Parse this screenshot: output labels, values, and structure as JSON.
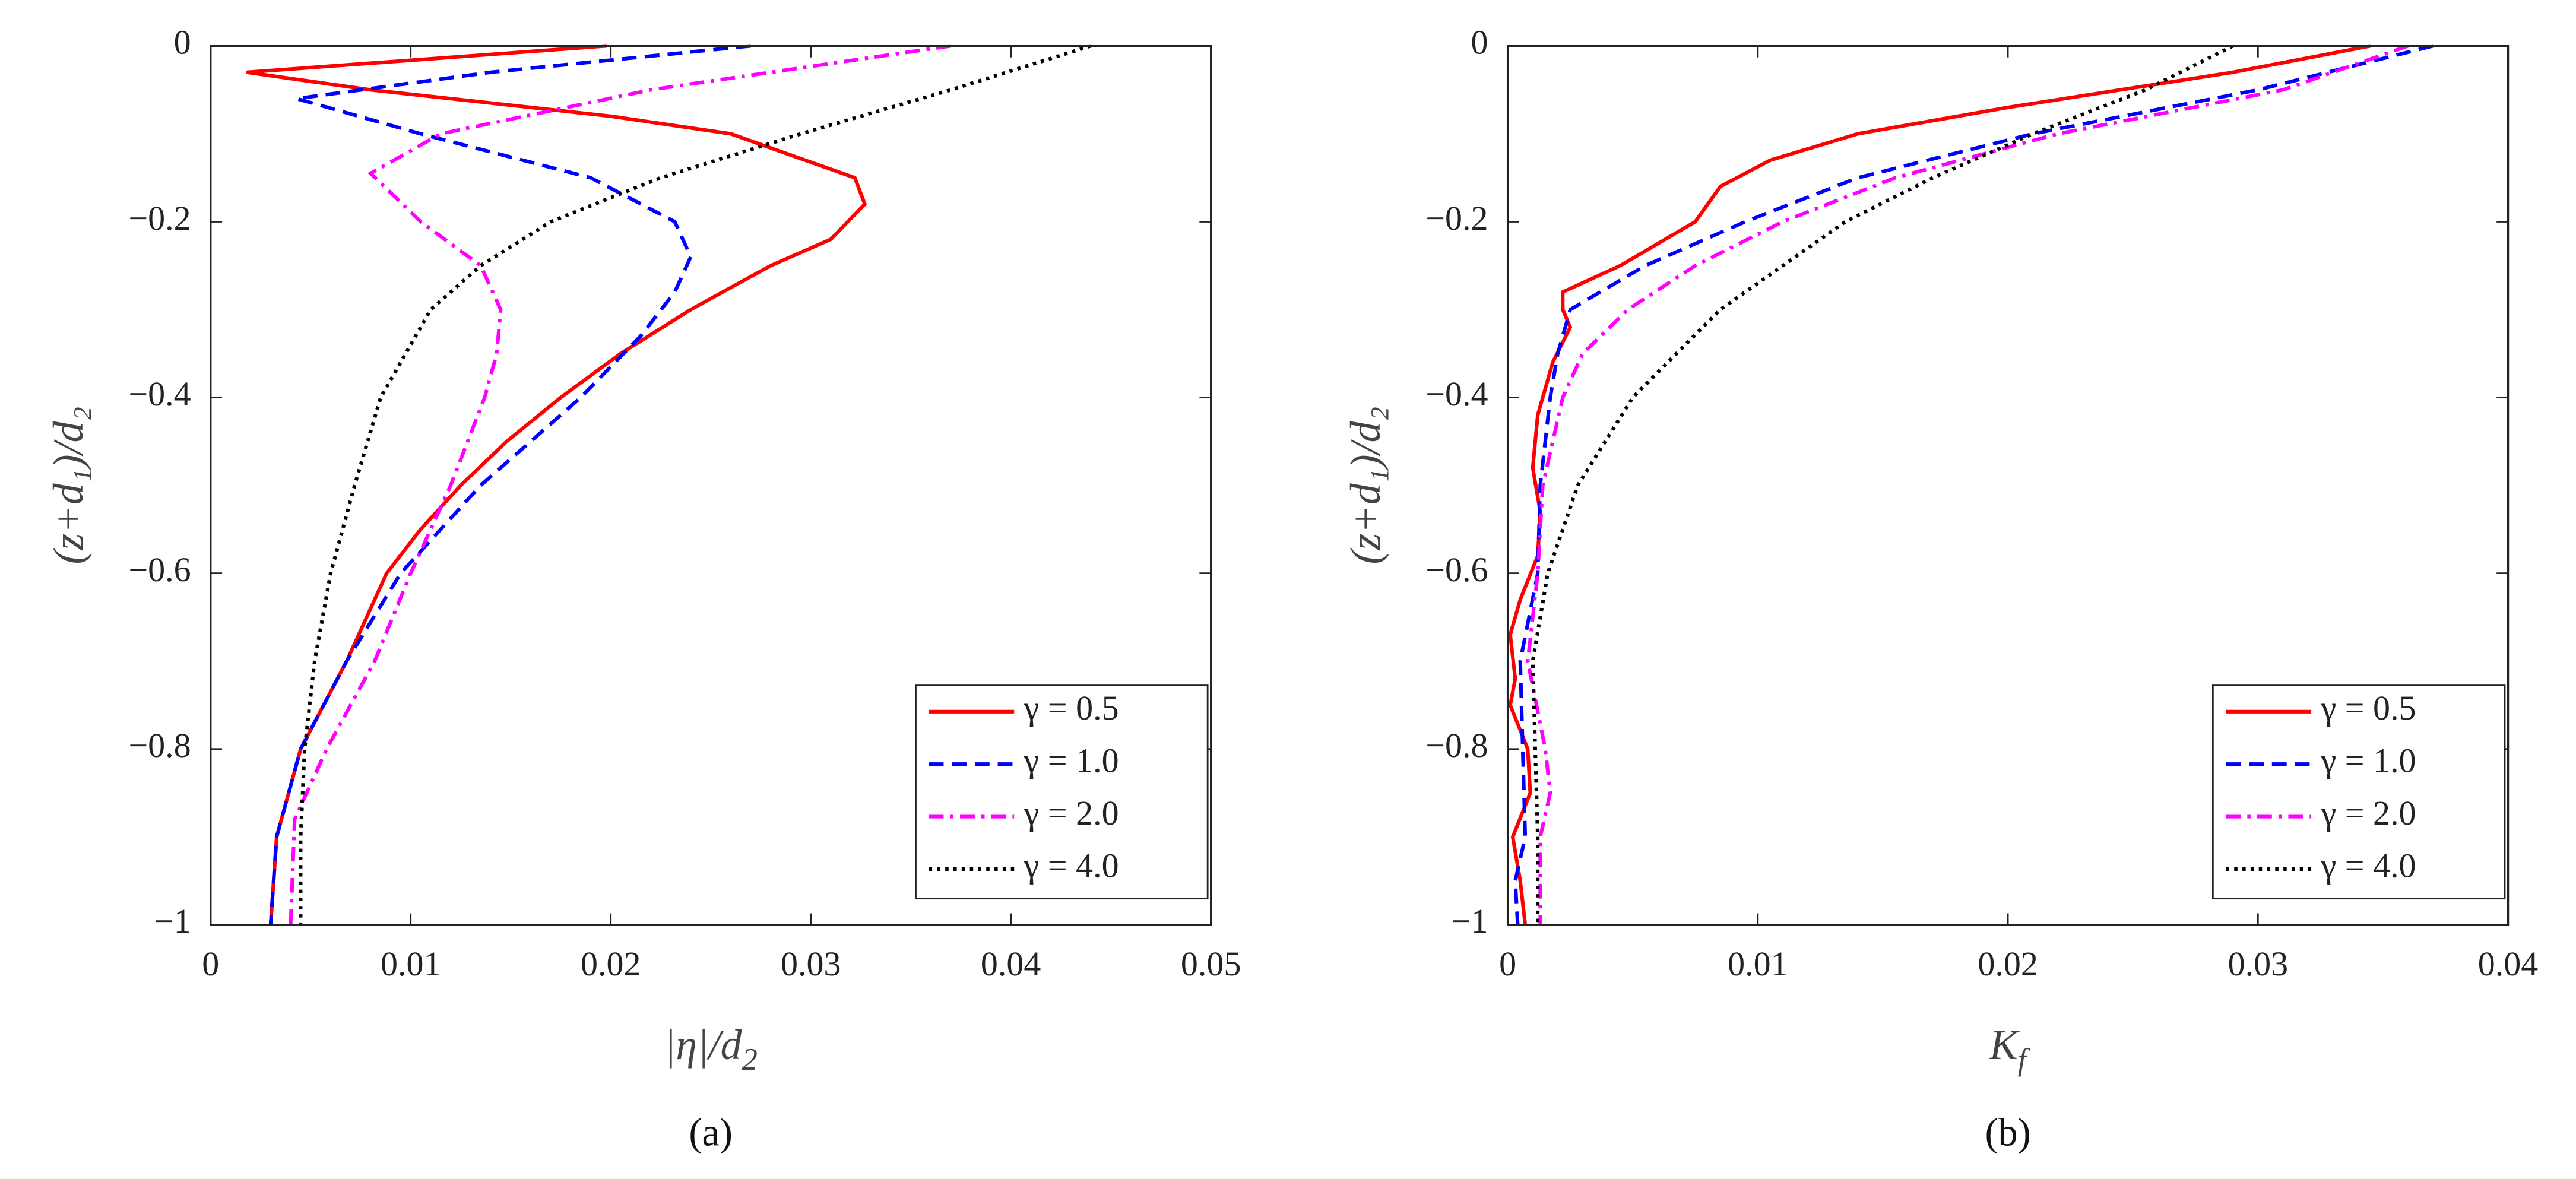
{
  "chart_data": [
    {
      "type": "line",
      "panel_label": "(a)",
      "xlabel": [
        "|η|/d",
        "2"
      ],
      "ylabel": "(z+d₁)/d₂",
      "xlim": [
        0,
        0.05
      ],
      "ylim": [
        -1,
        0
      ],
      "xticks": [
        0,
        0.01,
        0.02,
        0.03,
        0.04,
        0.05
      ],
      "yticks": [
        {
          "value": -1,
          "label": "−1"
        },
        {
          "value": -0.8,
          "label": "−0.8"
        },
        {
          "value": -0.6,
          "label": "−0.6"
        },
        {
          "value": -0.4,
          "label": "−0.4"
        },
        {
          "value": -0.2,
          "label": "−0.2"
        },
        0
      ],
      "legend": "lower right",
      "series": [
        {
          "name": "γ = 0.5",
          "color": "#ff0000",
          "style": "solid",
          "x": [
            0.0198,
            0.0018,
            0.008,
            0.02,
            0.026,
            0.0322,
            0.0327,
            0.031,
            0.028,
            0.024,
            0.0205,
            0.0175,
            0.0148,
            0.0125,
            0.0105,
            0.0088,
            0.0068,
            0.0045,
            0.0033,
            0.003
          ],
          "y": [
            0,
            -0.03,
            -0.05,
            -0.08,
            -0.1,
            -0.15,
            -0.18,
            -0.22,
            -0.25,
            -0.3,
            -0.35,
            -0.4,
            -0.45,
            -0.5,
            -0.55,
            -0.6,
            -0.7,
            -0.8,
            -0.9,
            -1
          ]
        },
        {
          "name": "γ = 1.0",
          "color": "#0000ff",
          "style": "dashed",
          "x": [
            0.027,
            0.014,
            0.0043,
            0.0105,
            0.019,
            0.0232,
            0.024,
            0.0232,
            0.0215,
            0.0185,
            0.0135,
            0.0095,
            0.0068,
            0.0045,
            0.0033,
            0.003
          ],
          "y": [
            0,
            -0.03,
            -0.06,
            -0.1,
            -0.15,
            -0.2,
            -0.24,
            -0.28,
            -0.33,
            -0.4,
            -0.5,
            -0.6,
            -0.7,
            -0.8,
            -0.9,
            -1
          ]
        },
        {
          "name": "γ = 2.0",
          "color": "#ff00ff",
          "style": "dashdot",
          "x": [
            0.037,
            0.022,
            0.0115,
            0.008,
            0.0105,
            0.0135,
            0.0145,
            0.0143,
            0.0137,
            0.012,
            0.01,
            0.0082,
            0.0058,
            0.0042,
            0.004
          ],
          "y": [
            0,
            -0.05,
            -0.1,
            -0.145,
            -0.2,
            -0.25,
            -0.3,
            -0.35,
            -0.4,
            -0.5,
            -0.6,
            -0.7,
            -0.8,
            -0.88,
            -1
          ]
        },
        {
          "name": "γ = 4.0",
          "color": "#000000",
          "style": "dotted",
          "x": [
            0.044,
            0.037,
            0.0295,
            0.0225,
            0.017,
            0.0135,
            0.011,
            0.0085,
            0.0072,
            0.006,
            0.0052,
            0.0047,
            0.0045,
            0.0045
          ],
          "y": [
            0,
            -0.05,
            -0.1,
            -0.15,
            -0.2,
            -0.25,
            -0.3,
            -0.4,
            -0.5,
            -0.6,
            -0.7,
            -0.8,
            -0.9,
            -1
          ]
        }
      ]
    },
    {
      "type": "line",
      "panel_label": "(b)",
      "xlabel": [
        "K",
        "f"
      ],
      "ylabel": "(z+d₁)/d₂",
      "xlim": [
        0,
        0.04
      ],
      "ylim": [
        -1,
        0
      ],
      "xticks": [
        0,
        0.01,
        0.02,
        0.03,
        0.04
      ],
      "yticks": [
        {
          "value": -1,
          "label": "−1"
        },
        {
          "value": -0.8,
          "label": "−0.8"
        },
        {
          "value": -0.6,
          "label": "−0.6"
        },
        {
          "value": -0.4,
          "label": "−0.4"
        },
        {
          "value": -0.2,
          "label": "−0.2"
        },
        0
      ],
      "legend": "lower right",
      "series": [
        {
          "name": "γ = 0.5",
          "color": "#ff0000",
          "style": "solid",
          "x": [
            0.0345,
            0.029,
            0.02,
            0.014,
            0.0105,
            0.0085,
            0.0075,
            0.0045,
            0.0022,
            0.0022,
            0.0025,
            0.0018,
            0.0012,
            0.001,
            0.0013,
            0.0012,
            0.0005,
            0.0001,
            0.0003,
            0.0001,
            0.0008,
            0.0009,
            0.0002,
            0.0005,
            0.0007
          ],
          "y": [
            0,
            -0.03,
            -0.07,
            -0.1,
            -0.13,
            -0.16,
            -0.2,
            -0.25,
            -0.28,
            -0.3,
            -0.32,
            -0.36,
            -0.42,
            -0.48,
            -0.53,
            -0.58,
            -0.63,
            -0.67,
            -0.72,
            -0.75,
            -0.8,
            -0.85,
            -0.9,
            -0.95,
            -1
          ]
        },
        {
          "name": "γ = 1.0",
          "color": "#0000ff",
          "style": "dashed",
          "x": [
            0.037,
            0.03,
            0.021,
            0.014,
            0.0095,
            0.0055,
            0.0025,
            0.002,
            0.0017,
            0.0013,
            0.0012,
            0.0005,
            0.0006,
            0.0007,
            0.0003,
            0.0004
          ],
          "y": [
            0,
            -0.05,
            -0.1,
            -0.15,
            -0.2,
            -0.25,
            -0.3,
            -0.35,
            -0.4,
            -0.5,
            -0.6,
            -0.7,
            -0.8,
            -0.9,
            -0.95,
            -1
          ]
        },
        {
          "name": "γ = 2.0",
          "color": "#ff00ff",
          "style": "dashdot",
          "x": [
            0.036,
            0.031,
            0.022,
            0.0155,
            0.011,
            0.0075,
            0.0048,
            0.003,
            0.0022,
            0.0014,
            0.0012,
            0.0008,
            0.0015,
            0.0017,
            0.0013,
            0.0013
          ],
          "y": [
            0,
            -0.05,
            -0.1,
            -0.15,
            -0.2,
            -0.25,
            -0.3,
            -0.35,
            -0.4,
            -0.5,
            -0.6,
            -0.7,
            -0.8,
            -0.85,
            -0.9,
            -1
          ]
        },
        {
          "name": "γ = 4.0",
          "color": "#000000",
          "style": "dotted",
          "x": [
            0.029,
            0.0255,
            0.021,
            0.017,
            0.0135,
            0.0085,
            0.005,
            0.0028,
            0.0016,
            0.001,
            0.0011,
            0.0012,
            0.0012
          ],
          "y": [
            0,
            -0.05,
            -0.1,
            -0.15,
            -0.2,
            -0.3,
            -0.4,
            -0.5,
            -0.6,
            -0.7,
            -0.8,
            -0.9,
            -1
          ]
        }
      ]
    }
  ]
}
